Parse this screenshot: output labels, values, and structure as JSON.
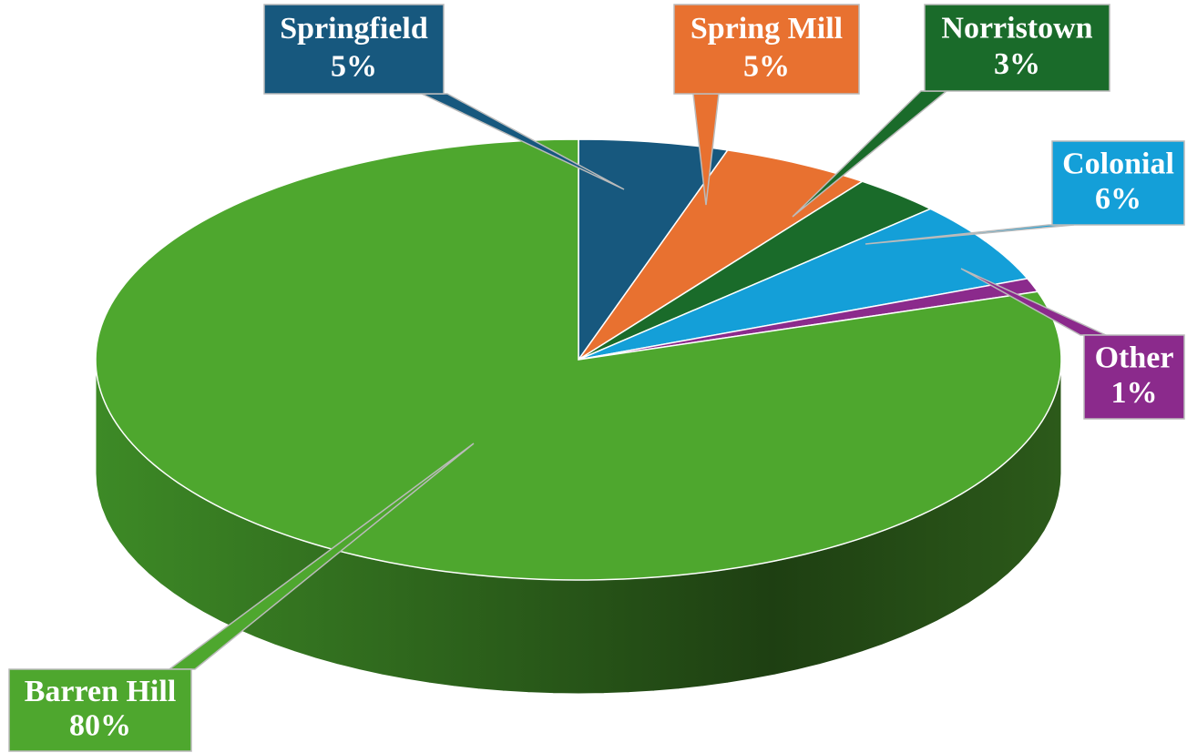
{
  "chart_data": {
    "type": "pie3d",
    "categories": [
      "Springfield",
      "Spring Mill",
      "Norristown",
      "Colonial",
      "Other",
      "Barren Hill"
    ],
    "values": [
      5,
      5,
      3,
      6,
      1,
      80
    ],
    "value_labels": [
      "5%",
      "5%",
      "3%",
      "6%",
      "1%",
      "80%"
    ],
    "colors": [
      "#17587e",
      "#e87130",
      "#1a6b2a",
      "#149fd8",
      "#8b2a8c",
      "#4ea72e"
    ]
  }
}
